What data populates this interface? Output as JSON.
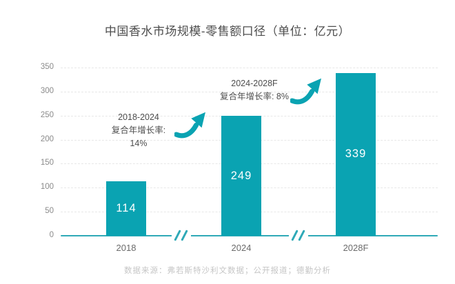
{
  "title": "中国香水市场规模-零售额口径（单位：亿元）",
  "source": "数据来源：弗若斯特沙利文数据；公开报道；德勤分析",
  "colors": {
    "bar": "#0aa3b2",
    "axis_line": "#2fa9b7",
    "gridline": "#e7e7e7",
    "title_text": "#4d4d4d",
    "ytick_text": "#8a8a8a",
    "xtick_text": "#6b6b6b",
    "annotation_text": "#4d4d4d",
    "bar_value_text": "#ffffff",
    "source_text": "#c6c6c6"
  },
  "chart_data": {
    "type": "bar",
    "title": "中国香水市场规模-零售额口径（单位：亿元）",
    "categories": [
      "2018",
      "2024",
      "2028F"
    ],
    "values": [
      114,
      249,
      339
    ],
    "xlabel": "",
    "ylabel": "",
    "unit": "亿元",
    "ylim": [
      0,
      350
    ],
    "yticks": [
      0,
      50,
      100,
      150,
      200,
      250,
      300,
      350
    ],
    "grid": "horizontal-dashed",
    "legend": "none",
    "axis_breaks_between": [
      [
        "2018",
        "2024"
      ],
      [
        "2024",
        "2028F"
      ]
    ],
    "annotations": [
      {
        "line1": "2018-2024",
        "line2": "复合年增长率: 14%",
        "icon": "curved-up-arrow"
      },
      {
        "line1": "2024-2028F",
        "line2": "复合年增长率: 8%",
        "icon": "curved-up-arrow"
      }
    ]
  }
}
